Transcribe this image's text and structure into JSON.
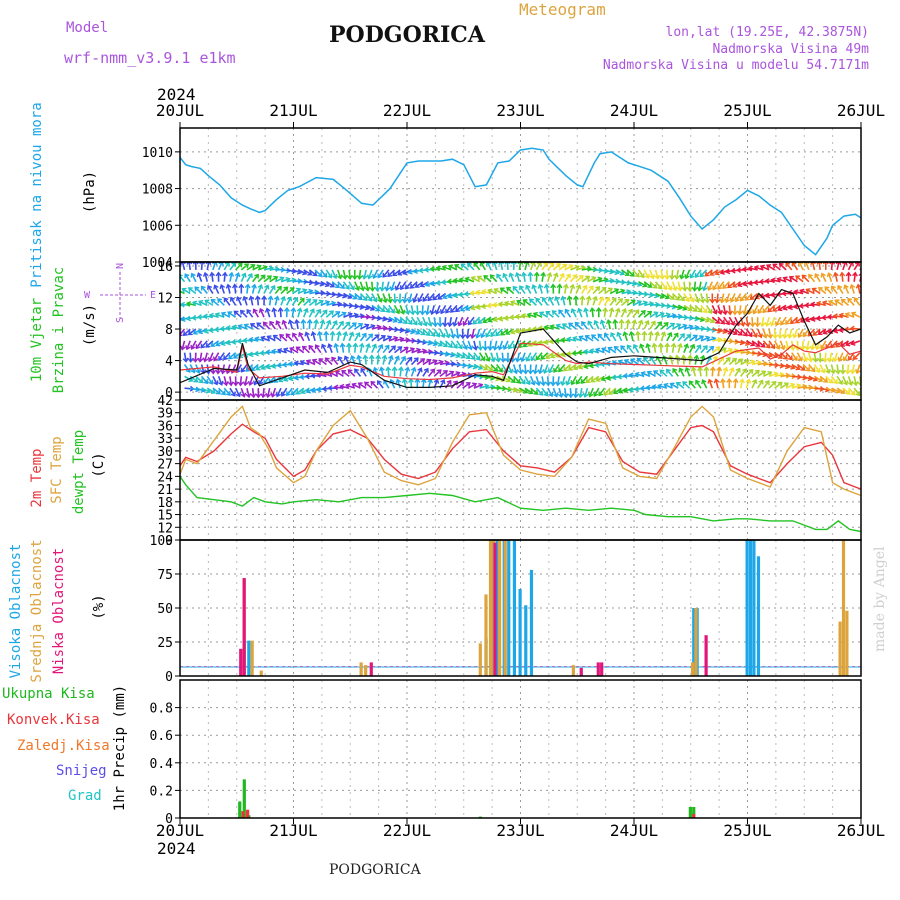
{
  "header": {
    "model_label": "Model",
    "model_name": "wrf-nmm_v3.9.1  e1km",
    "title": "PODGORICA",
    "meteogram": "Meteogram",
    "lonlat": "lon,lat (19.25E, 42.3875N)",
    "altitude": "Nadmorska Visina 49m",
    "model_altitude": "Nadmorska Visina u modelu 54.7171m"
  },
  "footer": {
    "station": "PODGORICA"
  },
  "watermark": "made by Angel",
  "colors": {
    "pressure": "#1ea7e8",
    "temp_2m": "#e8373c",
    "sfc_temp": "#dda43e",
    "dewpoint": "#22c322",
    "cloud_high": "#1ea7e8",
    "cloud_mid": "#dda43e",
    "cloud_low": "#e2167a",
    "rain_total": "#1fb81f",
    "rain_conv": "#e8373c",
    "freezing": "#f0782a",
    "snow": "#5b4de8",
    "hail": "#22c3c3",
    "purple_text": "#aa55dd"
  },
  "chart_data": {
    "type": "line",
    "x_axis": {
      "year": "2024",
      "ticks": [
        "20JUL",
        "21JUL",
        "22JUL",
        "23JUL",
        "24JUL",
        "25JUL",
        "26JUL"
      ],
      "range_days": [
        0,
        6
      ]
    },
    "panels": [
      {
        "id": "pressure",
        "ylabel": [
          "Pritisak na nivou mora",
          "(hPa)"
        ],
        "ylim": [
          1004,
          1011.3
        ],
        "yticks": [
          1004,
          1006,
          1008,
          1010
        ],
        "series": [
          {
            "name": "Pritisak na nivou mora",
            "x": [
              0,
              0.05,
              0.1,
              0.18,
              0.25,
              0.35,
              0.45,
              0.55,
              0.62,
              0.7,
              0.75,
              0.85,
              0.95,
              1.05,
              1.2,
              1.35,
              1.45,
              1.6,
              1.7,
              1.85,
              2.0,
              2.1,
              2.3,
              2.4,
              2.5,
              2.6,
              2.7,
              2.8,
              2.9,
              3.0,
              3.1,
              3.2,
              3.25,
              3.4,
              3.5,
              3.55,
              3.65,
              3.7,
              3.8,
              3.95,
              4.0,
              4.15,
              4.3,
              4.4,
              4.5,
              4.6,
              4.7,
              4.8,
              4.9,
              5.0,
              5.1,
              5.2,
              5.3,
              5.4,
              5.5,
              5.6,
              5.7,
              5.75,
              5.85,
              5.95,
              6.0
            ],
            "values": [
              1009.7,
              1009.3,
              1009.2,
              1009.1,
              1008.7,
              1008.2,
              1007.5,
              1007.1,
              1006.9,
              1006.7,
              1006.8,
              1007.4,
              1007.9,
              1008.1,
              1008.6,
              1008.5,
              1008.0,
              1007.2,
              1007.1,
              1008.0,
              1009.4,
              1009.5,
              1009.5,
              1009.6,
              1009.3,
              1008.1,
              1008.2,
              1009.4,
              1009.5,
              1010.1,
              1010.2,
              1010.1,
              1009.6,
              1008.7,
              1008.2,
              1008.1,
              1009.4,
              1009.9,
              1010.0,
              1009.4,
              1009.3,
              1009.0,
              1008.4,
              1007.5,
              1006.5,
              1005.8,
              1006.3,
              1007.0,
              1007.4,
              1007.9,
              1007.6,
              1007.1,
              1006.7,
              1005.8,
              1004.9,
              1004.4,
              1005.3,
              1006.0,
              1006.5,
              1006.6,
              1006.4
            ]
          }
        ]
      },
      {
        "id": "wind",
        "ylabel": [
          "10m Vjetar",
          "Brzina i Pravac",
          "(m/s)"
        ],
        "compass": {
          "north": "N",
          "west": "W",
          "east": "E",
          "south": "S"
        },
        "ylim": [
          -1,
          16.5
        ],
        "yticks": [
          0,
          4,
          8,
          12,
          16
        ],
        "series": [
          {
            "name": "Brzina",
            "x": [
              0,
              0.3,
              0.5,
              0.55,
              0.6,
              0.7,
              0.9,
              1.1,
              1.3,
              1.5,
              1.6,
              1.8,
              2.0,
              2.2,
              2.4,
              2.6,
              2.75,
              2.85,
              3.0,
              3.2,
              3.4,
              3.5,
              3.6,
              3.8,
              4.0,
              4.2,
              4.4,
              4.6,
              4.75,
              4.9,
              5.0,
              5.1,
              5.2,
              5.3,
              5.4,
              5.5,
              5.6,
              5.7,
              5.8,
              5.9,
              6.0
            ],
            "values": [
              2.8,
              3.2,
              2.5,
              5.8,
              3.0,
              1.8,
              2.0,
              2.4,
              2.3,
              3.4,
              3.2,
              2.0,
              1.7,
              1.6,
              1.8,
              2.4,
              2.6,
              2.2,
              6.2,
              6.0,
              4.0,
              3.6,
              3.8,
              3.6,
              3.5,
              3.4,
              3.3,
              3.2,
              4.2,
              5.2,
              5.4,
              5.6,
              4.2,
              4.8,
              6.0,
              5.2,
              5.0,
              5.6,
              6.2,
              4.8,
              5.2
            ]
          },
          {
            "name": "Udari",
            "x": [
              0,
              0.3,
              0.5,
              0.55,
              0.6,
              0.7,
              0.9,
              1.1,
              1.3,
              1.5,
              1.6,
              1.8,
              2.0,
              2.2,
              2.4,
              2.6,
              2.75,
              2.85,
              3.0,
              3.2,
              3.4,
              3.5,
              3.6,
              3.8,
              4.0,
              4.2,
              4.4,
              4.6,
              4.75,
              4.9,
              5.0,
              5.1,
              5.2,
              5.3,
              5.4,
              5.5,
              5.6,
              5.7,
              5.8,
              5.9,
              6.0
            ],
            "values": [
              1.2,
              3.0,
              2.8,
              6.2,
              3.5,
              0.8,
              1.8,
              2.8,
              2.5,
              3.8,
              3.5,
              1.5,
              0.6,
              0.6,
              0.8,
              2.2,
              2.0,
              1.5,
              7.5,
              8.0,
              4.8,
              3.8,
              3.6,
              4.4,
              4.6,
              4.4,
              4.2,
              4.0,
              5.0,
              8.5,
              10.0,
              12.5,
              11.0,
              13.0,
              12.5,
              9.0,
              6.0,
              7.0,
              8.5,
              7.5,
              8.0
            ]
          }
        ],
        "arrow_speed_colors": [
          "#9a22c8",
          "#3b4de8",
          "#1ea7e8",
          "#22c3c3",
          "#22c322",
          "#a8d42a",
          "#f0e030",
          "#f0a020",
          "#f05020",
          "#e8163e"
        ]
      },
      {
        "id": "temperature",
        "ylabel": [
          "2m Temp",
          "SFC Temp",
          "dewpt Temp",
          "(C)"
        ],
        "ylim": [
          9,
          42
        ],
        "yticks": [
          9,
          12,
          15,
          18,
          21,
          24,
          27,
          30,
          33,
          36,
          39,
          42
        ],
        "series": [
          {
            "name": "2m Temp",
            "x": [
              0,
              0.05,
              0.15,
              0.3,
              0.45,
              0.55,
              0.65,
              0.75,
              0.85,
              1.0,
              1.1,
              1.2,
              1.35,
              1.5,
              1.65,
              1.8,
              1.95,
              2.1,
              2.25,
              2.4,
              2.55,
              2.7,
              2.85,
              3.0,
              3.15,
              3.3,
              3.45,
              3.6,
              3.75,
              3.9,
              4.05,
              4.2,
              4.35,
              4.5,
              4.6,
              4.7,
              4.85,
              5.0,
              5.1,
              5.2,
              5.35,
              5.5,
              5.65,
              5.75,
              5.85,
              6.0
            ],
            "values": [
              26.5,
              28.5,
              27.5,
              30,
              34,
              36.3,
              34.5,
              33,
              28,
              24,
              25.5,
              30,
              34,
              35,
              33,
              28,
              24.5,
              23.5,
              25,
              30.5,
              34.5,
              35,
              30,
              26.5,
              26,
              25,
              28.5,
              35.5,
              34.5,
              27.5,
              25,
              24.5,
              30,
              35.5,
              36,
              34.5,
              26.5,
              24.5,
              23.5,
              22.5,
              27,
              31,
              32,
              29,
              22.5,
              21
            ]
          },
          {
            "name": "SFC Temp",
            "x": [
              0,
              0.05,
              0.15,
              0.3,
              0.45,
              0.55,
              0.62,
              0.7,
              0.78,
              0.85,
              1.0,
              1.1,
              1.2,
              1.35,
              1.5,
              1.65,
              1.8,
              1.95,
              2.1,
              2.25,
              2.4,
              2.55,
              2.7,
              2.85,
              3.0,
              3.15,
              3.3,
              3.45,
              3.6,
              3.75,
              3.9,
              4.05,
              4.2,
              4.35,
              4.5,
              4.6,
              4.7,
              4.85,
              5.0,
              5.1,
              5.2,
              5.35,
              5.5,
              5.65,
              5.75,
              5.85,
              6.0
            ],
            "values": [
              24.5,
              28,
              27,
              32.5,
              38,
              40.5,
              35.5,
              34,
              30.5,
              26,
              22.5,
              24,
              30,
              36,
              39.5,
              33,
              25,
              23,
              22,
              23.5,
              32,
              38.5,
              39,
              29,
              25.5,
              24.5,
              24,
              28.5,
              37.5,
              36.5,
              26,
              24,
              23.5,
              30.5,
              38,
              40.5,
              38,
              25.5,
              23.5,
              22.5,
              21.5,
              30,
              35.5,
              34.5,
              22.5,
              21,
              19.5
            ]
          },
          {
            "name": "dewpt Temp",
            "x": [
              0,
              0.05,
              0.15,
              0.3,
              0.45,
              0.55,
              0.65,
              0.75,
              0.9,
              1.0,
              1.2,
              1.4,
              1.6,
              1.8,
              2.0,
              2.2,
              2.4,
              2.6,
              2.8,
              3.0,
              3.2,
              3.4,
              3.6,
              3.8,
              4.0,
              4.1,
              4.3,
              4.5,
              4.7,
              4.9,
              5.0,
              5.2,
              5.4,
              5.6,
              5.7,
              5.8,
              5.9,
              6.0
            ],
            "values": [
              24,
              22,
              19,
              18.5,
              18,
              17,
              19,
              18,
              17.5,
              18,
              18.5,
              18,
              19,
              19,
              19.5,
              20,
              19.5,
              18,
              19,
              16.5,
              16,
              16.5,
              16,
              16.5,
              16,
              15,
              14.5,
              14.5,
              13.5,
              14,
              14,
              13.5,
              13.5,
              11.5,
              11.5,
              13.5,
              11.5,
              11
            ]
          }
        ]
      },
      {
        "id": "clouds",
        "ylabel": [
          "Visoka Oblacnost",
          "Srednja Oblacnost",
          "Niska Oblacnost",
          "(%)"
        ],
        "ylim": [
          0,
          100
        ],
        "yticks": [
          0,
          25,
          50,
          75,
          100
        ],
        "series": [
          {
            "name": "Visoka Oblacnost",
            "x": [
              0.57,
              0.61,
              2.7,
              2.76,
              2.8,
              2.86,
              2.9,
              2.95,
              3.0,
              3.05,
              3.1,
              4.53,
              4.56,
              5.0,
              5.03,
              5.06,
              5.1
            ],
            "values": [
              26,
              26,
              28,
              100,
              100,
              100,
              100,
              100,
              64,
              52,
              78,
              50,
              50,
              100,
              100,
              100,
              88
            ]
          },
          {
            "name": "Srednja Oblacnost",
            "x": [
              0.55,
              0.62,
              0.7,
              1.58,
              1.62,
              2.63,
              2.68,
              2.72,
              2.75,
              2.8,
              2.85,
              3.45,
              4.5,
              4.53,
              5.8,
              5.83,
              5.86
            ],
            "values": [
              72,
              26,
              4,
              10,
              8,
              24,
              60,
              100,
              100,
              100,
              100,
              8,
              10,
              50,
              40,
              100,
              48
            ]
          },
          {
            "name": "Niska Oblacnost",
            "x": [
              0.5,
              0.53,
              1.65,
              2.74,
              3.5,
              3.65,
              3.68,
              4.6
            ],
            "values": [
              20,
              72,
              10,
              98,
              6,
              10,
              10,
              30
            ]
          }
        ]
      },
      {
        "id": "precip",
        "ylabel": [
          "Ukupna Kisa",
          "Konvek.Kisa",
          "Zaledj.Kisa",
          "Snijeg",
          "Grad",
          "1hr Precip (mm)"
        ],
        "ylim": [
          0,
          1.0
        ],
        "yticks": [
          0,
          0.2,
          0.4,
          0.6,
          0.8
        ],
        "series": [
          {
            "name": "Ukupna Kisa",
            "x": [
              0.53,
              0.57,
              0.61,
              2.65,
              4.5,
              4.53
            ],
            "values": [
              0.12,
              0.28,
              0.02,
              0.01,
              0.08,
              0.08
            ]
          },
          {
            "name": "Konvek.Kisa",
            "x": [
              0.54,
              0.58,
              4.51
            ],
            "values": [
              0.05,
              0.06,
              0.03
            ]
          },
          {
            "name": "Zaledj.Kisa",
            "x": [],
            "values": []
          },
          {
            "name": "Snijeg",
            "x": [],
            "values": []
          },
          {
            "name": "Grad",
            "x": [],
            "values": []
          }
        ]
      }
    ]
  }
}
